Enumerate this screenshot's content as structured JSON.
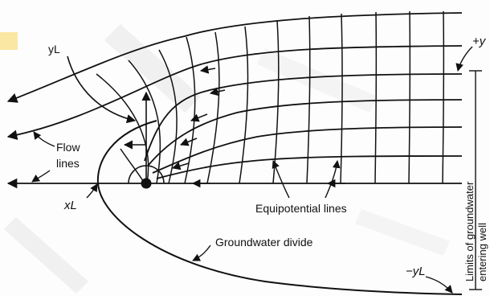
{
  "figure": {
    "labels": {
      "y_l_top": "yL",
      "plus_y": "+y",
      "flow_lines_1": "Flow",
      "flow_lines_2": "lines",
      "x_l": "xL",
      "equipotential": "Equipotential lines",
      "groundwater_divide": "Groundwater divide",
      "minus_y_l": "−yL",
      "limits_1": "Limits of groundwater",
      "limits_2": "entering well"
    },
    "colors": {
      "ink": "#111111",
      "watermark_gray": "#d9d9d9",
      "highlight": "#f6d24a"
    }
  }
}
